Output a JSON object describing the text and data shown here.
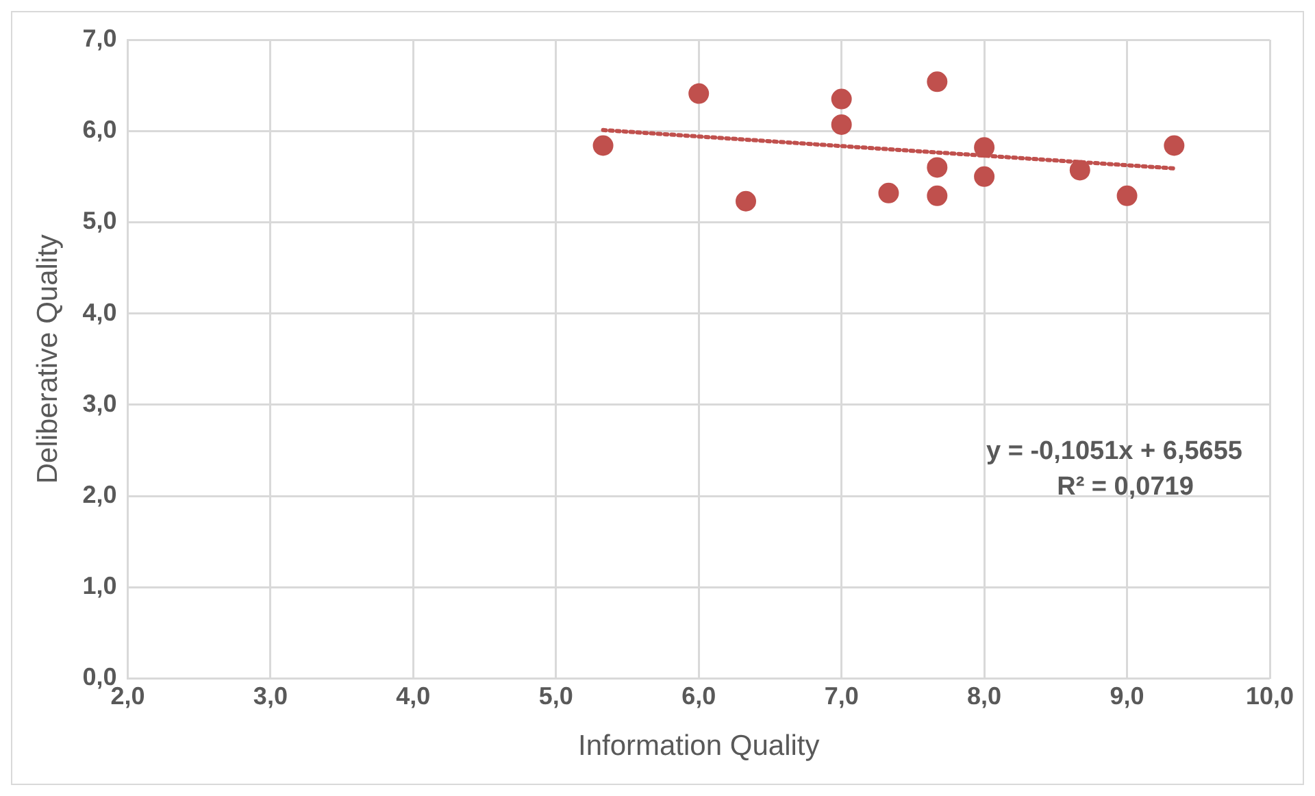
{
  "chart_data": {
    "type": "scatter",
    "xlabel": "Information Quality",
    "ylabel": "Deliberative Quality",
    "series": [
      {
        "type": "scatter",
        "color": "#c0504d",
        "marker": "circle",
        "x": [
          5.33,
          6.0,
          6.33,
          7.0,
          7.0,
          7.33,
          7.67,
          7.67,
          7.67,
          8.0,
          8.0,
          8.67,
          9.0,
          9.33
        ],
        "values": [
          5.84,
          6.41,
          5.23,
          6.35,
          6.07,
          5.32,
          6.54,
          5.6,
          5.29,
          5.82,
          5.5,
          5.57,
          5.29,
          5.84
        ]
      },
      {
        "type": "line",
        "color": "#c0504d",
        "line_style": "dotted",
        "marker": "none",
        "x": [
          5.33,
          9.33
        ],
        "values": [
          6.01,
          5.59
        ]
      }
    ],
    "annotations": [
      "y = -0,1051x + 6,5655",
      "R² = 0,0719"
    ],
    "xlim": [
      2,
      10
    ],
    "ylim": [
      0,
      7
    ],
    "xticks": [
      {
        "value": 2,
        "label": "2,0"
      },
      {
        "value": 3,
        "label": "3,0"
      },
      {
        "value": 4,
        "label": "4,0"
      },
      {
        "value": 5,
        "label": "5,0"
      },
      {
        "value": 6,
        "label": "6,0"
      },
      {
        "value": 7,
        "label": "7,0"
      },
      {
        "value": 8,
        "label": "8,0"
      },
      {
        "value": 9,
        "label": "9,0"
      },
      {
        "value": 10,
        "label": "10,0"
      }
    ],
    "yticks": [
      {
        "value": 0,
        "label": "0,0"
      },
      {
        "value": 1,
        "label": "1,0"
      },
      {
        "value": 2,
        "label": "2,0"
      },
      {
        "value": 3,
        "label": "3,0"
      },
      {
        "value": 4,
        "label": "4,0"
      },
      {
        "value": 5,
        "label": "5,0"
      },
      {
        "value": 6,
        "label": "6,0"
      },
      {
        "value": 7,
        "label": "7,0"
      }
    ],
    "grid": true,
    "legend": false
  }
}
